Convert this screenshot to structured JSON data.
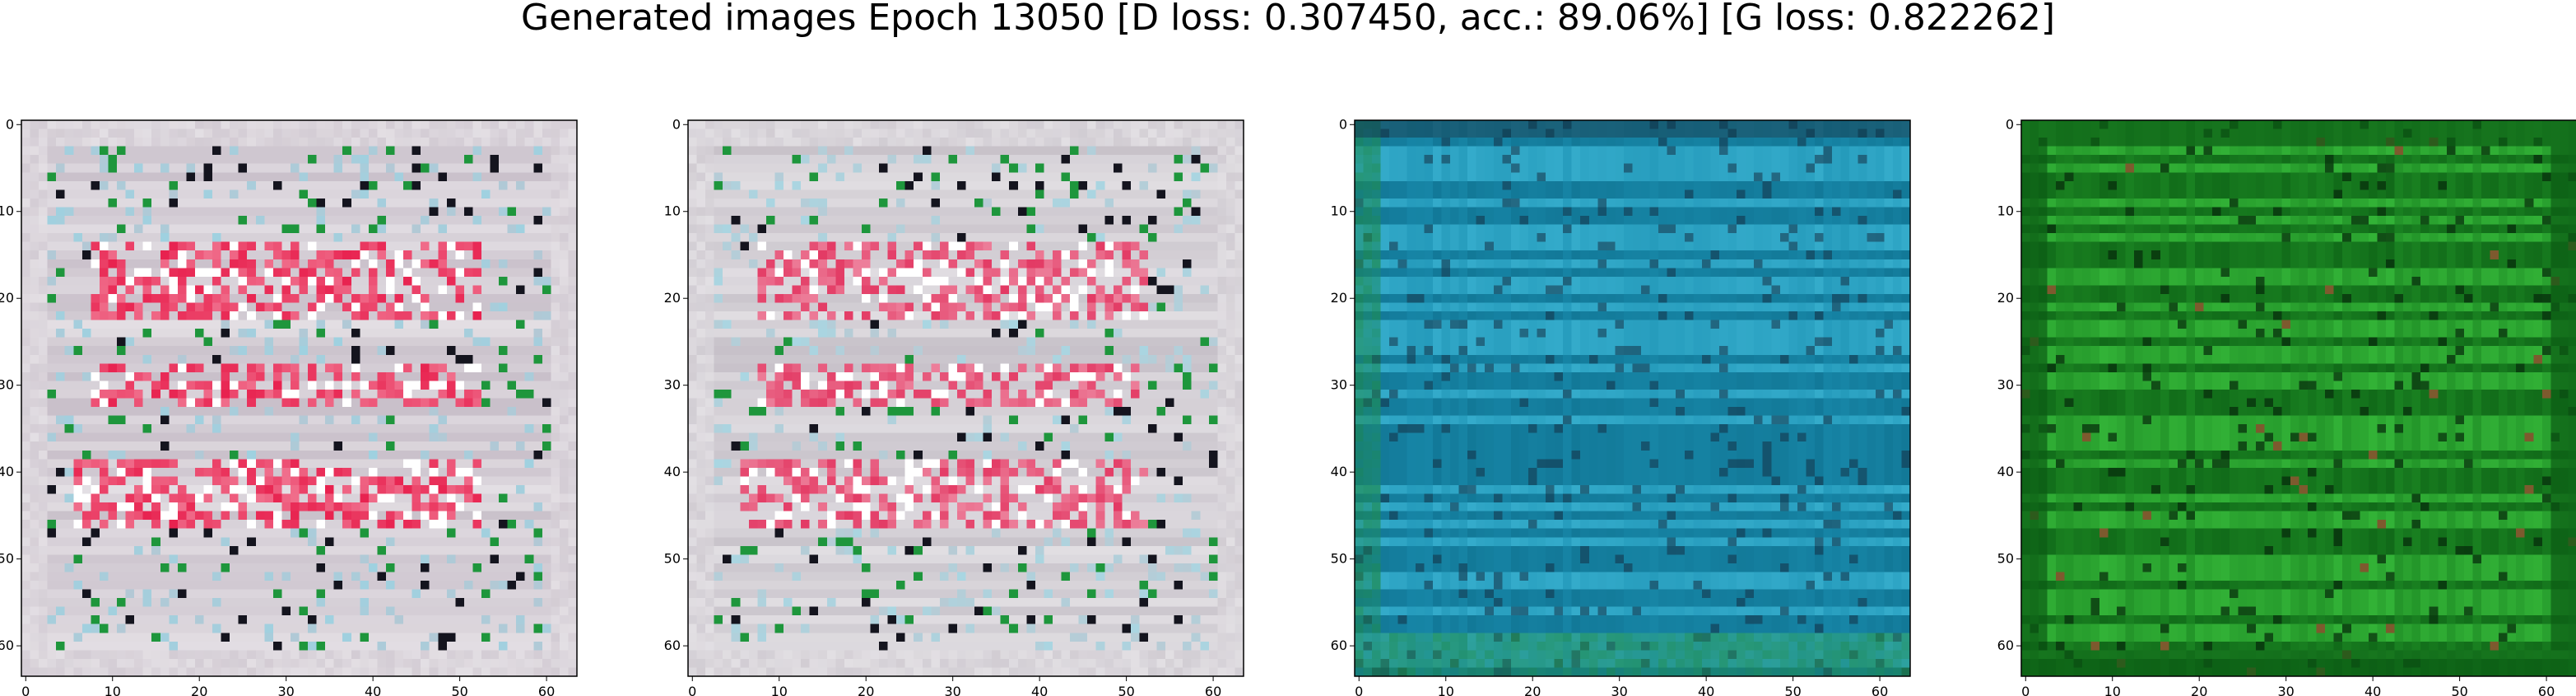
{
  "figure": {
    "title": "Generated images Epoch 13050 [D loss: 0.307450, acc.: 89.06%] [G loss: 0.822262]"
  },
  "panels": [
    {
      "theme": "pink-noise",
      "x_ticks": [
        "0",
        "10",
        "20",
        "30",
        "40",
        "50",
        "60"
      ],
      "y_ticks": [
        "0",
        "10",
        "20",
        "30",
        "40",
        "50",
        "60"
      ],
      "colors": {
        "base": "#c8bfc9",
        "accent1": "#e8224f",
        "accent2": "#ffffff",
        "accent3": "#9fd1e0"
      }
    },
    {
      "theme": "pink-noise",
      "x_ticks": [
        "0",
        "10",
        "20",
        "30",
        "40",
        "50",
        "60"
      ],
      "y_ticks": [
        "0",
        "10",
        "20",
        "30",
        "40",
        "50",
        "60"
      ],
      "colors": {
        "base": "#c6c0c8",
        "accent1": "#e33a64",
        "accent2": "#ffffff",
        "accent3": "#a9d6e2"
      }
    },
    {
      "theme": "teal-noise",
      "x_ticks": [
        "0",
        "10",
        "20",
        "30",
        "40",
        "50",
        "60"
      ],
      "y_ticks": [
        "0",
        "10",
        "20",
        "30",
        "40",
        "50",
        "60"
      ],
      "colors": {
        "base": "#1a8fb0",
        "accent1": "#0f6f8e",
        "accent2": "#3fb7d6",
        "accent3": "#1f8a3c"
      }
    },
    {
      "theme": "green-noise",
      "x_ticks": [
        "0",
        "10",
        "20",
        "30",
        "40",
        "50",
        "60"
      ],
      "y_ticks": [
        "0",
        "10",
        "20",
        "30",
        "40",
        "50",
        "60"
      ],
      "colors": {
        "base": "#1d8a24",
        "accent1": "#0b5c14",
        "accent2": "#3cc43f",
        "accent3": "#7d5a2e"
      }
    }
  ]
}
